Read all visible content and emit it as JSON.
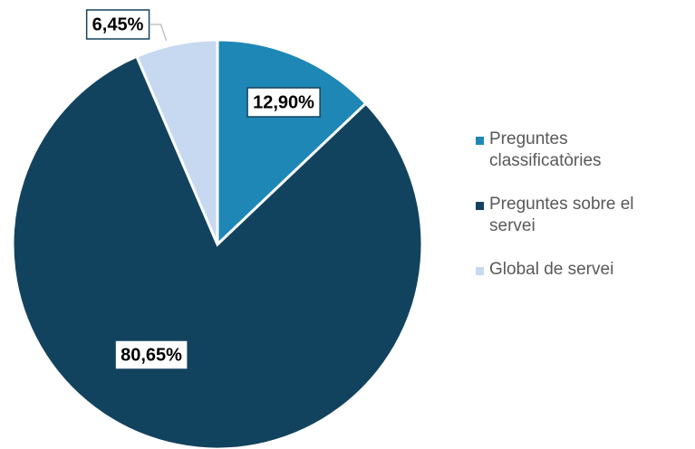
{
  "chart_data": {
    "type": "pie",
    "series": [
      {
        "name": "Preguntes classificatòries",
        "color": "#1f87b6",
        "values": [
          12.9
        ],
        "value_labels": [
          "12,90%"
        ]
      },
      {
        "name": "Preguntes sobre el servei",
        "color": "#12435e",
        "values": [
          80.65
        ],
        "value_labels": [
          "80,65%"
        ]
      },
      {
        "name": "Global de servei",
        "color": "#c6d9f0",
        "values": [
          6.45
        ],
        "value_labels": [
          "6,45%"
        ]
      }
    ],
    "legend": "right"
  }
}
